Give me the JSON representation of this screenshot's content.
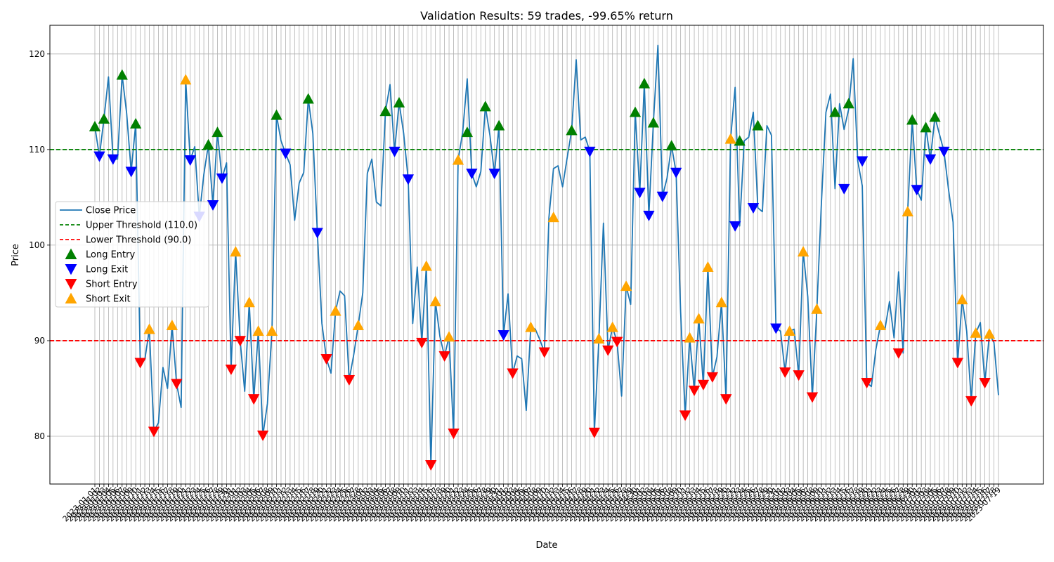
{
  "chart_data": {
    "type": "line",
    "title": "Validation Results: 59 trades, -99.65% return",
    "xlabel": "Date",
    "ylabel": "Price",
    "ylim": [
      75,
      123
    ],
    "yticks": [
      80,
      90,
      100,
      110,
      120
    ],
    "grid": true,
    "legend_position": "center-left",
    "x_start_date": "2023-01-01",
    "x_tick_labels": "dense rotated daily dates (overlapping, illegible)",
    "thresholds": [
      {
        "name": "Upper Threshold (110.0)",
        "value": 110.0,
        "color": "#008000",
        "style": "dashed"
      },
      {
        "name": "Lower Threshold (90.0)",
        "value": 90.0,
        "color": "#ff0000",
        "style": "dashed"
      }
    ],
    "series": [
      {
        "name": "Close Price",
        "color": "#1f77b4",
        "values": [
          112.4,
          109.3,
          113.2,
          117.6,
          109.0,
          109.0,
          117.8,
          113.8,
          107.7,
          112.7,
          87.7,
          88.0,
          91.2,
          80.5,
          81.4,
          87.2,
          85.0,
          91.6,
          85.5,
          83.0,
          117.3,
          108.9,
          110.3,
          103.0,
          107.4,
          110.5,
          104.2,
          111.8,
          107.0,
          108.6,
          87.0,
          99.3,
          90.0,
          84.7,
          94.0,
          83.9,
          91.0,
          80.1,
          83.4,
          91.0,
          113.6,
          110.9,
          109.6,
          108.4,
          102.6,
          106.5,
          107.6,
          115.3,
          111.7,
          101.3,
          91.8,
          88.1,
          86.6,
          93.1,
          95.2,
          94.7,
          85.9,
          88.5,
          91.6,
          95.0,
          107.5,
          109.0,
          104.5,
          104.1,
          114.0,
          116.8,
          109.8,
          114.9,
          111.7,
          106.9,
          91.8,
          97.7,
          89.8,
          97.8,
          77.0,
          94.1,
          90.4,
          88.4,
          90.4,
          80.3,
          108.9,
          111.8,
          117.4,
          107.5,
          106.1,
          107.7,
          114.5,
          111.5,
          107.5,
          112.5,
          90.6,
          94.9,
          86.6,
          88.4,
          88.1,
          82.7,
          91.4,
          91.2,
          90.1,
          88.8,
          102.9,
          108.0,
          108.3,
          106.1,
          109.1,
          112.0,
          119.4,
          111.0,
          111.3,
          109.8,
          80.4,
          90.2,
          102.3,
          89.0,
          91.4,
          89.9,
          84.2,
          95.7,
          93.8,
          113.9,
          105.5,
          116.9,
          103.1,
          112.8,
          120.9,
          105.1,
          107.0,
          110.4,
          107.6,
          93.0,
          82.2,
          90.3,
          84.8,
          92.3,
          85.4,
          97.7,
          86.2,
          88.3,
          94.0,
          83.9,
          111.1,
          116.5,
          102.0,
          110.9,
          111.3,
          113.9,
          103.9,
          103.5,
          112.5,
          111.5,
          91.3,
          91.0,
          86.7,
          91.0,
          91.2,
          86.4,
          99.3,
          94.6,
          84.1,
          93.3,
          104.4,
          113.9,
          115.8,
          105.9,
          114.8,
          112.1,
          114.2,
          119.5,
          108.8,
          106.2,
          85.6,
          85.2,
          89.1,
          91.6,
          91.2,
          94.1,
          90.3,
          97.2,
          88.7,
          103.5,
          113.1,
          105.8,
          104.7,
          112.3,
          109.0,
          113.4,
          111.6,
          109.8,
          105.8,
          102.4,
          87.7,
          94.3,
          91.0,
          83.7,
          90.8,
          91.9,
          85.6,
          90.7,
          89.8,
          84.3
        ]
      },
      {
        "name": "Long Entry",
        "marker": "triangle-up",
        "color": "#008000",
        "points": [
          [
            0,
            112.4
          ],
          [
            2,
            113.2
          ],
          [
            6,
            117.8
          ],
          [
            9,
            112.7
          ],
          [
            25,
            110.5
          ],
          [
            27,
            111.8
          ],
          [
            40,
            113.6
          ],
          [
            47,
            115.3
          ],
          [
            64,
            114.0
          ],
          [
            67,
            114.9
          ],
          [
            82,
            111.8
          ],
          [
            86,
            114.5
          ],
          [
            89,
            112.5
          ],
          [
            105,
            112.0
          ],
          [
            119,
            113.9
          ],
          [
            121,
            116.9
          ],
          [
            123,
            112.8
          ],
          [
            127,
            110.4
          ],
          [
            142,
            110.9
          ],
          [
            146,
            112.5
          ],
          [
            163,
            113.9
          ],
          [
            166,
            114.8
          ],
          [
            180,
            113.1
          ],
          [
            183,
            112.3
          ],
          [
            185,
            113.4
          ]
        ]
      },
      {
        "name": "Long Exit",
        "marker": "triangle-down",
        "color": "#0000ff",
        "points": [
          [
            1,
            109.3
          ],
          [
            4,
            109.0
          ],
          [
            8,
            107.7
          ],
          [
            21,
            108.9
          ],
          [
            23,
            103.0
          ],
          [
            26,
            104.2
          ],
          [
            28,
            107.0
          ],
          [
            42,
            109.6
          ],
          [
            49,
            101.3
          ],
          [
            66,
            109.8
          ],
          [
            69,
            106.9
          ],
          [
            83,
            107.5
          ],
          [
            88,
            107.5
          ],
          [
            90,
            90.6
          ],
          [
            109,
            109.8
          ],
          [
            120,
            105.5
          ],
          [
            122,
            103.1
          ],
          [
            125,
            105.1
          ],
          [
            128,
            107.6
          ],
          [
            141,
            102.0
          ],
          [
            145,
            103.9
          ],
          [
            150,
            91.3
          ],
          [
            165,
            105.9
          ],
          [
            169,
            108.8
          ],
          [
            181,
            105.8
          ],
          [
            184,
            109.0
          ],
          [
            187,
            109.8
          ]
        ]
      },
      {
        "name": "Short Entry",
        "marker": "triangle-down",
        "color": "#ff0000",
        "points": [
          [
            10,
            87.7
          ],
          [
            13,
            80.5
          ],
          [
            18,
            85.5
          ],
          [
            30,
            87.0
          ],
          [
            32,
            90.0
          ],
          [
            35,
            83.9
          ],
          [
            37,
            80.1
          ],
          [
            51,
            88.1
          ],
          [
            56,
            85.9
          ],
          [
            72,
            89.8
          ],
          [
            74,
            77.0
          ],
          [
            77,
            88.4
          ],
          [
            79,
            80.3
          ],
          [
            92,
            86.6
          ],
          [
            99,
            88.8
          ],
          [
            110,
            80.4
          ],
          [
            113,
            89.0
          ],
          [
            115,
            89.9
          ],
          [
            130,
            82.2
          ],
          [
            132,
            84.8
          ],
          [
            134,
            85.4
          ],
          [
            136,
            86.2
          ],
          [
            139,
            83.9
          ],
          [
            152,
            86.7
          ],
          [
            155,
            86.4
          ],
          [
            158,
            84.1
          ],
          [
            170,
            85.6
          ],
          [
            177,
            88.7
          ],
          [
            190,
            87.7
          ],
          [
            193,
            83.7
          ],
          [
            196,
            85.6
          ]
        ]
      },
      {
        "name": "Short Exit",
        "marker": "triangle-up",
        "color": "#ffa500",
        "points": [
          [
            12,
            91.2
          ],
          [
            17,
            91.6
          ],
          [
            20,
            117.3
          ],
          [
            31,
            99.3
          ],
          [
            34,
            94.0
          ],
          [
            36,
            91.0
          ],
          [
            39,
            91.0
          ],
          [
            53,
            93.1
          ],
          [
            58,
            91.6
          ],
          [
            73,
            97.8
          ],
          [
            75,
            94.1
          ],
          [
            78,
            90.4
          ],
          [
            80,
            108.9
          ],
          [
            96,
            91.4
          ],
          [
            101,
            102.9
          ],
          [
            111,
            90.2
          ],
          [
            114,
            91.4
          ],
          [
            117,
            95.7
          ],
          [
            131,
            90.3
          ],
          [
            133,
            92.3
          ],
          [
            135,
            97.7
          ],
          [
            138,
            94.0
          ],
          [
            140,
            111.1
          ],
          [
            153,
            91.0
          ],
          [
            156,
            99.3
          ],
          [
            159,
            93.3
          ],
          [
            173,
            91.6
          ],
          [
            179,
            103.5
          ],
          [
            191,
            94.3
          ],
          [
            194,
            90.8
          ],
          [
            197,
            90.7
          ]
        ]
      }
    ]
  }
}
